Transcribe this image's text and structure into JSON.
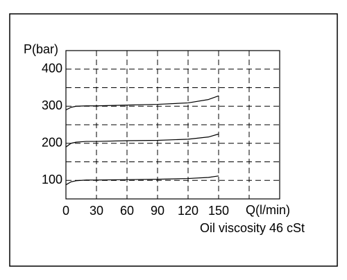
{
  "chart_data": {
    "type": "line",
    "y_label": "P(bar)",
    "x_label": "Q(l/min)",
    "annotation": "Oil viscosity 46 cSt",
    "x": [
      0,
      5,
      10,
      20,
      30,
      60,
      90,
      120,
      140,
      150
    ],
    "series": [
      {
        "color": "#000000",
        "values": [
          88,
          96,
          99,
          101,
          101,
          102,
          103,
          105,
          108,
          112
        ]
      },
      {
        "color": "#000000",
        "values": [
          190,
          200,
          203,
          205,
          205,
          207,
          208,
          211,
          217,
          225
        ]
      },
      {
        "color": "#000000",
        "values": [
          290,
          297,
          300,
          301,
          301,
          303,
          305,
          309,
          318,
          328
        ]
      }
    ],
    "xlim": [
      0,
      210
    ],
    "xticks": [
      0,
      30,
      60,
      90,
      120,
      150,
      {
        "value": 180,
        "label": null
      },
      {
        "value": 210,
        "label": null
      }
    ],
    "ylim": [
      50,
      450
    ],
    "yticks": [
      {
        "value": 50,
        "label": null
      },
      100,
      {
        "value": 150,
        "label": null
      },
      200,
      {
        "value": 250,
        "label": null
      },
      300,
      {
        "value": 350,
        "label": null
      },
      400,
      {
        "value": 450,
        "label": null
      }
    ],
    "grid": true
  }
}
